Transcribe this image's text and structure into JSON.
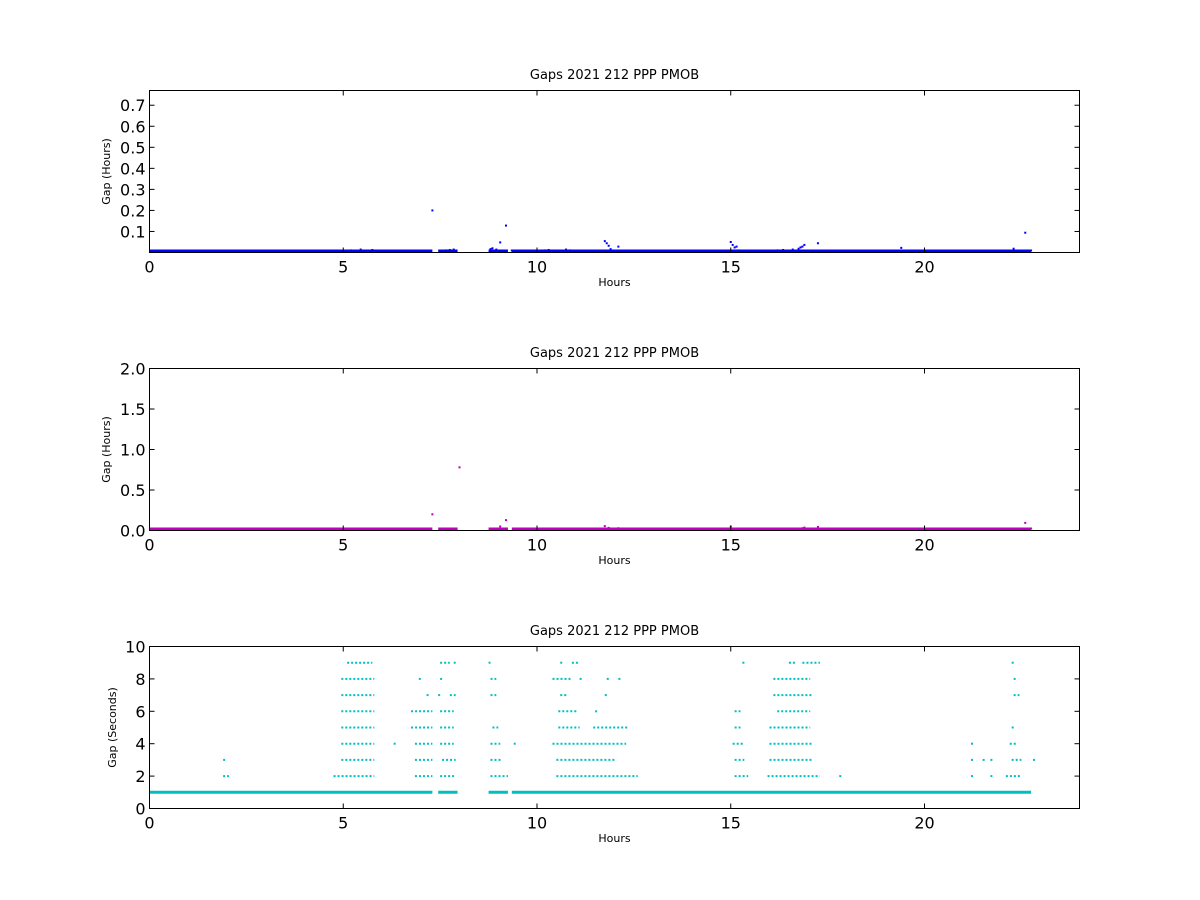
{
  "chart_data": [
    {
      "type": "scatter",
      "title": "Gaps 2021 212 PPP  PMOB",
      "xlabel": "Hours",
      "ylabel": "Gap (Hours)",
      "xlim": [
        0,
        24
      ],
      "ylim": [
        0,
        0.77
      ],
      "xticks": [
        0,
        5,
        10,
        15,
        20
      ],
      "xtick_labels": [
        "0",
        "5",
        "10",
        "15",
        "20"
      ],
      "yticks": [
        0.1,
        0.2,
        0.3,
        0.4,
        0.5,
        0.6,
        0.7
      ],
      "ytick_labels": [
        "0.1",
        "0.2",
        "0.3",
        "0.4",
        "0.5",
        "0.6",
        "0.7"
      ],
      "grid": false,
      "color": "#0000ff",
      "baseline": {
        "value": 0.0003,
        "segments": [
          [
            0,
            7.3
          ],
          [
            7.45,
            7.95
          ],
          [
            8.75,
            9.25
          ],
          [
            9.35,
            22.75
          ]
        ]
      },
      "points": [
        [
          0.05,
          0.004
        ],
        [
          5.05,
          0.008
        ],
        [
          5.2,
          0.01
        ],
        [
          5.35,
          0.006
        ],
        [
          5.45,
          0.014
        ],
        [
          5.6,
          0.008
        ],
        [
          5.75,
          0.012
        ],
        [
          6.7,
          0.006
        ],
        [
          7.3,
          0.2
        ],
        [
          7.55,
          0.008
        ],
        [
          7.65,
          0.01
        ],
        [
          7.75,
          0.012
        ],
        [
          7.85,
          0.014
        ],
        [
          7.9,
          0.008
        ],
        [
          8.8,
          0.016
        ],
        [
          8.85,
          0.02
        ],
        [
          8.95,
          0.014
        ],
        [
          9.05,
          0.048
        ],
        [
          9.2,
          0.128
        ],
        [
          9.35,
          0.006
        ],
        [
          10.2,
          0.01
        ],
        [
          10.3,
          0.012
        ],
        [
          10.45,
          0.008
        ],
        [
          10.75,
          0.014
        ],
        [
          10.85,
          0.01
        ],
        [
          11.75,
          0.054
        ],
        [
          11.8,
          0.044
        ],
        [
          11.85,
          0.032
        ],
        [
          11.9,
          0.016
        ],
        [
          12.1,
          0.028
        ],
        [
          15.0,
          0.05
        ],
        [
          15.05,
          0.036
        ],
        [
          15.1,
          0.024
        ],
        [
          15.15,
          0.028
        ],
        [
          15.2,
          0.01
        ],
        [
          16.2,
          0.01
        ],
        [
          16.35,
          0.012
        ],
        [
          16.6,
          0.014
        ],
        [
          16.75,
          0.018
        ],
        [
          16.8,
          0.024
        ],
        [
          16.85,
          0.028
        ],
        [
          16.9,
          0.036
        ],
        [
          17.25,
          0.044
        ],
        [
          19.4,
          0.022
        ],
        [
          22.3,
          0.018
        ],
        [
          22.6,
          0.094
        ],
        [
          22.75,
          0.006
        ]
      ]
    },
    {
      "type": "scatter",
      "title": "Gaps 2021 212 PPP  PMOB",
      "xlabel": "Hours",
      "ylabel": "Gap (Hours)",
      "xlim": [
        0,
        24
      ],
      "ylim": [
        0,
        2.0
      ],
      "xticks": [
        0,
        5,
        10,
        15,
        20
      ],
      "xtick_labels": [
        "0",
        "5",
        "10",
        "15",
        "20"
      ],
      "yticks": [
        0.0,
        0.5,
        1.0,
        1.5,
        2.0
      ],
      "ytick_labels": [
        "0.0",
        "0.5",
        "1.0",
        "1.5",
        "2.0"
      ],
      "grid": false,
      "color": "#bf00bf",
      "baseline": {
        "value": 0.0003,
        "segments": [
          [
            0,
            7.3
          ],
          [
            7.45,
            7.95
          ],
          [
            8.75,
            9.25
          ],
          [
            9.35,
            22.75
          ]
        ]
      },
      "points": [
        [
          7.3,
          0.2
        ],
        [
          8.0,
          0.78
        ],
        [
          8.85,
          0.02
        ],
        [
          9.05,
          0.05
        ],
        [
          9.2,
          0.128
        ],
        [
          11.75,
          0.054
        ],
        [
          11.85,
          0.032
        ],
        [
          12.1,
          0.028
        ],
        [
          15.0,
          0.05
        ],
        [
          15.1,
          0.024
        ],
        [
          16.85,
          0.028
        ],
        [
          16.9,
          0.036
        ],
        [
          17.25,
          0.044
        ],
        [
          19.4,
          0.022
        ],
        [
          22.6,
          0.094
        ],
        [
          22.75,
          0.006
        ]
      ]
    },
    {
      "type": "scatter",
      "title": "Gaps 2021 212 PPP  PMOB",
      "xlabel": "Hours",
      "ylabel": "Gap (Seconds)",
      "xlim": [
        0,
        24
      ],
      "ylim": [
        0,
        10
      ],
      "xticks": [
        0,
        5,
        10,
        15,
        20
      ],
      "xtick_labels": [
        "0",
        "5",
        "10",
        "15",
        "20"
      ],
      "yticks": [
        0,
        2,
        4,
        6,
        8,
        10
      ],
      "ytick_labels": [
        "0",
        "2",
        "4",
        "6",
        "8",
        "10"
      ],
      "grid": false,
      "color": "#00bfbf",
      "baseline": {
        "value": 1,
        "segments": [
          [
            0,
            7.3
          ],
          [
            7.45,
            7.95
          ],
          [
            8.75,
            9.25
          ],
          [
            9.35,
            22.75
          ]
        ]
      },
      "levels": [
        {
          "y": 2,
          "ranges": [
            [
              1.9,
              2.05
            ],
            [
              4.75,
              5.8
            ],
            [
              6.85,
              7.3
            ],
            [
              7.5,
              7.9
            ],
            [
              8.8,
              9.25
            ],
            [
              10.5,
              12.6
            ],
            [
              15.1,
              15.45
            ],
            [
              15.95,
              17.3
            ],
            [
              17.8,
              17.82
            ],
            [
              21.2,
              21.22
            ],
            [
              21.7,
              21.72
            ],
            [
              22.1,
              22.5
            ]
          ]
        },
        {
          "y": 3,
          "ranges": [
            [
              1.9,
              1.92
            ],
            [
              4.95,
              5.8
            ],
            [
              6.85,
              7.3
            ],
            [
              7.55,
              7.9
            ],
            [
              8.8,
              9.1
            ],
            [
              10.5,
              12.05
            ],
            [
              15.1,
              15.35
            ],
            [
              16.0,
              17.1
            ],
            [
              21.2,
              21.22
            ],
            [
              21.5,
              21.52
            ],
            [
              21.7,
              21.72
            ],
            [
              22.25,
              22.5
            ],
            [
              22.8,
              22.82
            ]
          ]
        },
        {
          "y": 4,
          "ranges": [
            [
              4.95,
              5.8
            ],
            [
              6.3,
              6.32
            ],
            [
              6.85,
              7.3
            ],
            [
              7.5,
              7.85
            ],
            [
              8.8,
              9.05
            ],
            [
              9.4,
              9.42
            ],
            [
              10.4,
              12.3
            ],
            [
              15.05,
              15.35
            ],
            [
              16.0,
              17.1
            ],
            [
              21.2,
              21.22
            ],
            [
              22.2,
              22.4
            ]
          ]
        },
        {
          "y": 5,
          "ranges": [
            [
              4.95,
              5.8
            ],
            [
              6.75,
              7.3
            ],
            [
              7.5,
              7.85
            ],
            [
              8.85,
              9.0
            ],
            [
              10.55,
              11.1
            ],
            [
              11.45,
              12.35
            ],
            [
              15.1,
              15.25
            ],
            [
              16.0,
              17.05
            ],
            [
              22.25,
              22.35
            ]
          ]
        },
        {
          "y": 6,
          "ranges": [
            [
              4.95,
              5.8
            ],
            [
              6.75,
              7.3
            ],
            [
              7.5,
              7.85
            ],
            [
              10.55,
              11.05
            ],
            [
              11.5,
              11.52
            ],
            [
              15.1,
              15.25
            ],
            [
              16.2,
              17.05
            ]
          ]
        },
        {
          "y": 7,
          "ranges": [
            [
              4.95,
              5.8
            ],
            [
              7.15,
              7.2
            ],
            [
              7.45,
              7.5
            ],
            [
              7.75,
              7.9
            ],
            [
              8.8,
              8.95
            ],
            [
              10.6,
              10.8
            ],
            [
              11.75,
              11.77
            ],
            [
              16.1,
              17.1
            ],
            [
              22.3,
              22.45
            ]
          ]
        },
        {
          "y": 8,
          "ranges": [
            [
              4.95,
              5.8
            ],
            [
              6.95,
              6.97
            ],
            [
              7.5,
              7.52
            ],
            [
              8.8,
              8.95
            ],
            [
              10.4,
              10.9
            ],
            [
              11.1,
              11.12
            ],
            [
              11.8,
              11.82
            ],
            [
              12.1,
              12.2
            ],
            [
              16.1,
              17.05
            ],
            [
              22.3,
              22.35
            ]
          ]
        },
        {
          "y": 9,
          "ranges": [
            [
              5.1,
              5.75
            ],
            [
              7.5,
              7.75
            ],
            [
              7.85,
              7.95
            ],
            [
              8.75,
              8.77
            ],
            [
              10.6,
              10.65
            ],
            [
              10.9,
              11.1
            ],
            [
              15.3,
              15.32
            ],
            [
              16.5,
              16.7
            ],
            [
              16.85,
              17.3
            ],
            [
              22.25,
              22.3
            ]
          ]
        }
      ]
    }
  ]
}
